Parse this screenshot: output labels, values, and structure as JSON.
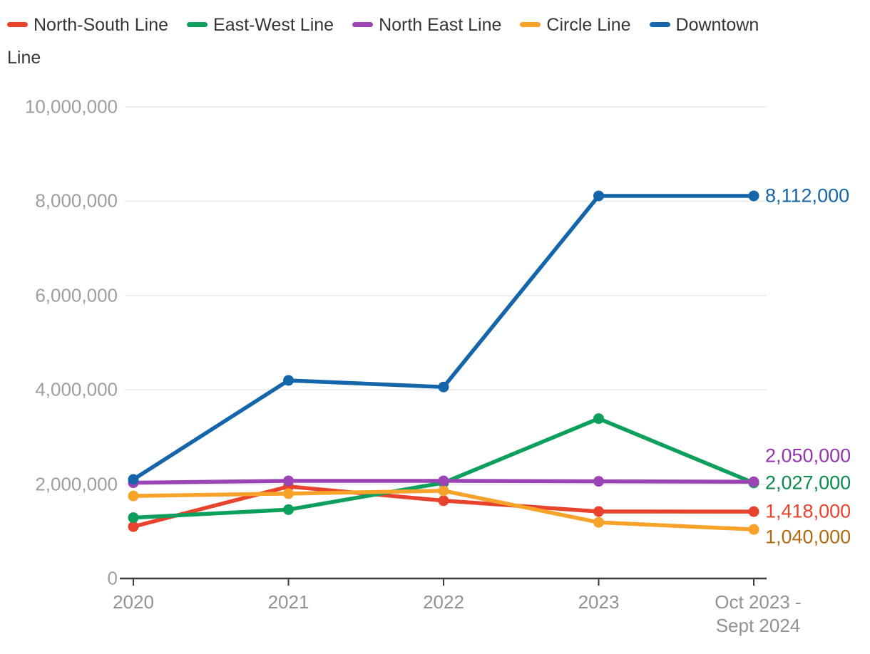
{
  "chart_data": {
    "type": "line",
    "categories": [
      "2020",
      "2021",
      "2022",
      "2023",
      "Oct 2023 - Sept 2024"
    ],
    "series": [
      {
        "name": "North-South Line",
        "color": "#e8432c",
        "label_color": "#e8432c",
        "values": [
          1100000,
          1950000,
          1650000,
          1420000,
          1418000
        ],
        "end_label": "1,418,000"
      },
      {
        "name": "East-West Line",
        "color": "#0da05c",
        "label_color": "#0b8a4d",
        "values": [
          1290000,
          1460000,
          2030000,
          3390000,
          2027000
        ],
        "end_label": "2,027,000"
      },
      {
        "name": "North East Line",
        "color": "#9d44b5",
        "label_color": "#9534ae",
        "values": [
          2030000,
          2070000,
          2070000,
          2060000,
          2050000
        ],
        "end_label": "2,050,000"
      },
      {
        "name": "Circle Line",
        "color": "#f7a229",
        "label_color": "#b16a10",
        "values": [
          1750000,
          1800000,
          1860000,
          1190000,
          1040000
        ],
        "end_label": "1,040,000"
      },
      {
        "name": "Downtown Line",
        "color": "#1465a9",
        "label_color": "#1465a9",
        "values": [
          2100000,
          4200000,
          4060000,
          8112000,
          8112000
        ],
        "end_label": "8,112,000"
      }
    ],
    "y_ticks": [
      {
        "label": "0",
        "value": 0
      },
      {
        "label": "2,000,000",
        "value": 2000000
      },
      {
        "label": "4,000,000",
        "value": 4000000
      },
      {
        "label": "6,000,000",
        "value": 6000000
      },
      {
        "label": "8,000,000",
        "value": 8000000
      },
      {
        "label": "10,000,000",
        "value": 10000000
      }
    ],
    "ylim": [
      0,
      10000000
    ],
    "grid": "horizontal",
    "legend_position": "top",
    "colors": {
      "axis": "#3a3a3a",
      "grid": "#e9e9e9",
      "tick_label": "#9e9e9e",
      "legend_text": "#363636"
    }
  }
}
